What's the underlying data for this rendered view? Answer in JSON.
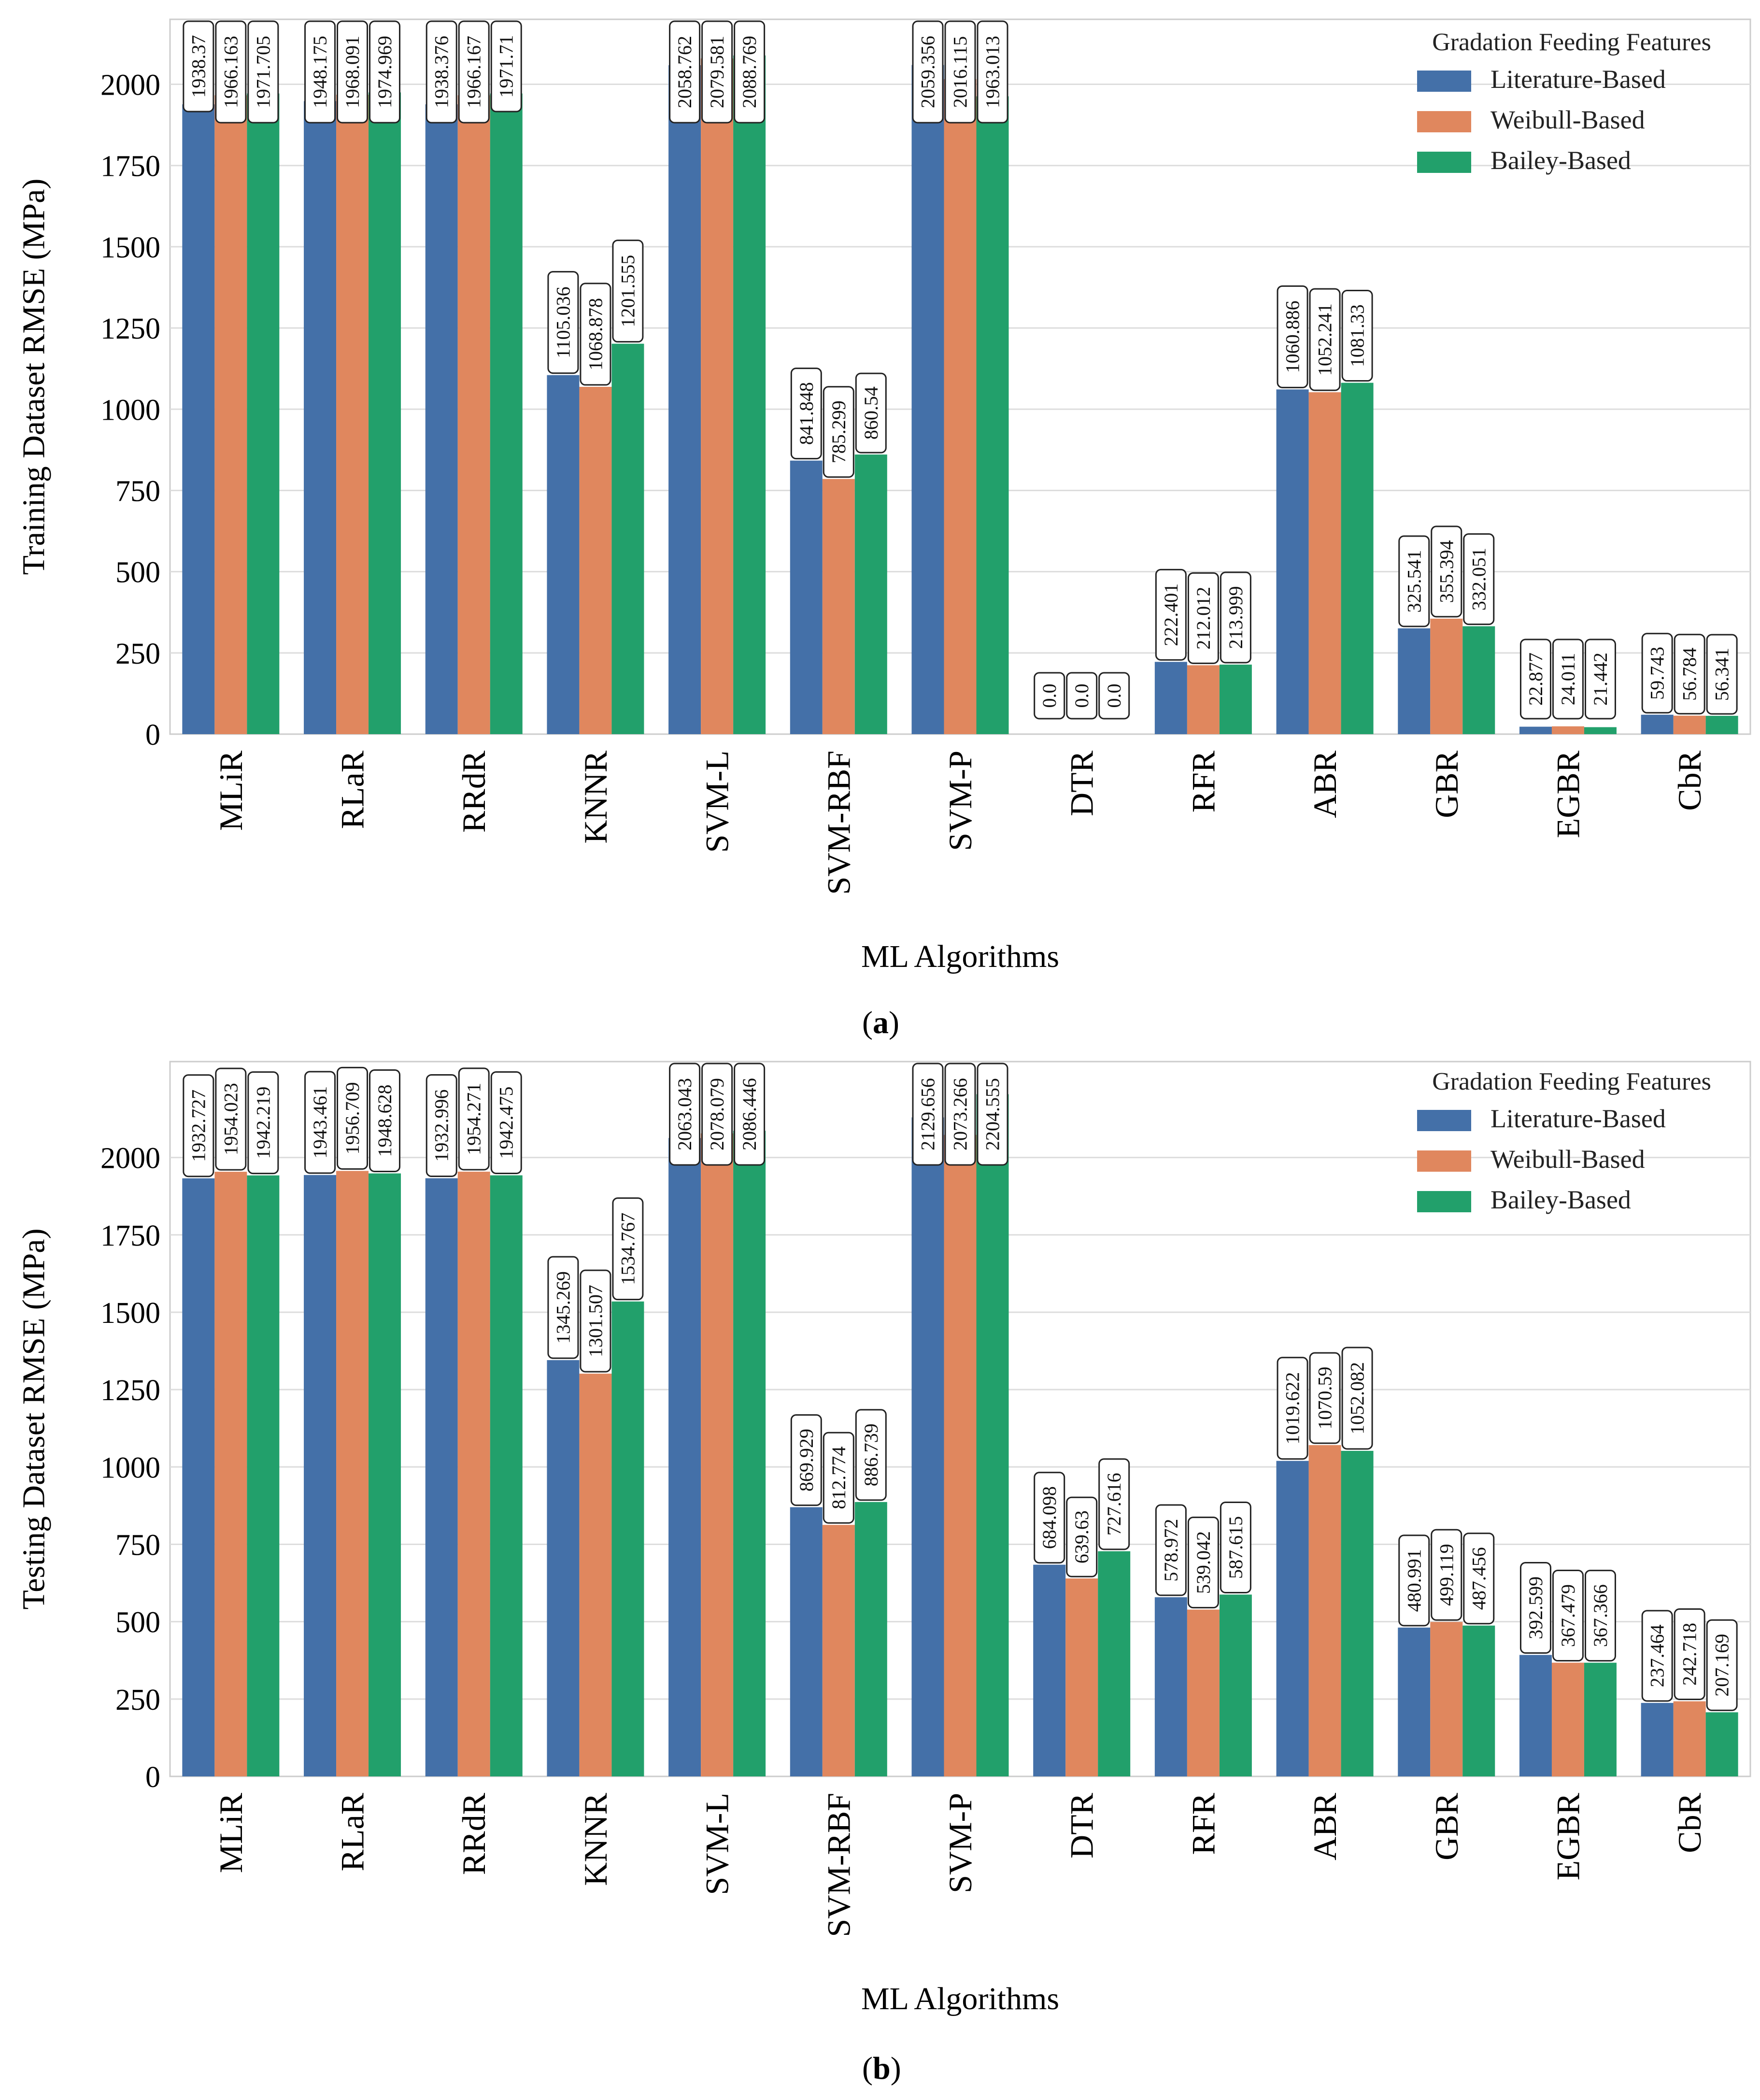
{
  "figure": {
    "caption_a": {
      "open": "(",
      "letter": "a",
      "close": ")"
    },
    "caption_b": {
      "open": "(",
      "letter": "b",
      "close": ")"
    }
  },
  "colors": {
    "literature": "#4470a8",
    "weibull": "#e0875e",
    "bailey": "#22a06b",
    "grid": "#dddddd",
    "frame": "#cccccc"
  },
  "chart_data": [
    {
      "type": "bar",
      "panel": "a",
      "xlabel": "ML Algorithms",
      "ylabel": "Training Dataset RMSE (MPa)",
      "ylim": [
        0,
        2200
      ],
      "yticks": [
        0,
        250,
        500,
        750,
        1000,
        1250,
        1500,
        1750,
        2000
      ],
      "legend": {
        "title": "Gradation Feeding Features",
        "placement": "top-right"
      },
      "categories": [
        "MLiR",
        "RLaR",
        "RRdR",
        "KNNR",
        "SVM-L",
        "SVM-RBF",
        "SVM-P",
        "DTR",
        "RFR",
        "ABR",
        "GBR",
        "EGBR",
        "CbR"
      ],
      "series": [
        {
          "name": "Literature-Based",
          "color": "#4470a8",
          "values": [
            1938.37,
            1948.175,
            1938.376,
            1105.036,
            2058.762,
            841.848,
            2059.356,
            0.0,
            222.401,
            1060.886,
            325.541,
            22.877,
            59.743
          ],
          "labels": [
            "1938.37",
            "1948.175",
            "1938.376",
            "1105.036",
            "2058.762",
            "841.848",
            "2059.356",
            "0.0",
            "222.401",
            "1060.886",
            "325.541",
            "22.877",
            "59.743"
          ]
        },
        {
          "name": "Weibull-Based",
          "color": "#e0875e",
          "values": [
            1966.163,
            1968.091,
            1966.167,
            1068.878,
            2079.581,
            785.299,
            2016.115,
            0.0,
            212.012,
            1052.241,
            355.394,
            24.011,
            56.784
          ],
          "labels": [
            "1966.163",
            "1968.091",
            "1966.167",
            "1068.878",
            "2079.581",
            "785.299",
            "2016.115",
            "0.0",
            "212.012",
            "1052.241",
            "355.394",
            "24.011",
            "56.784"
          ]
        },
        {
          "name": "Bailey-Based",
          "color": "#22a06b",
          "values": [
            1971.705,
            1974.969,
            1971.71,
            1201.555,
            2088.769,
            860.54,
            1963.013,
            0.0,
            213.999,
            1081.33,
            332.051,
            21.442,
            56.341
          ],
          "labels": [
            "1971.705",
            "1974.969",
            "1971.71",
            "1201.555",
            "2088.769",
            "860.54",
            "1963.013",
            "0.0",
            "213.999",
            "1081.33",
            "332.051",
            "21.442",
            "56.341"
          ]
        }
      ]
    },
    {
      "type": "bar",
      "panel": "b",
      "xlabel": "ML Algorithms",
      "ylabel": "Testing Dataset RMSE (MPa)",
      "ylim": [
        0,
        2310
      ],
      "yticks": [
        0,
        250,
        500,
        750,
        1000,
        1250,
        1500,
        1750,
        2000
      ],
      "legend": {
        "title": "Gradation Feeding Features",
        "placement": "top-right"
      },
      "categories": [
        "MLiR",
        "RLaR",
        "RRdR",
        "KNNR",
        "SVM-L",
        "SVM-RBF",
        "SVM-P",
        "DTR",
        "RFR",
        "ABR",
        "GBR",
        "EGBR",
        "CbR"
      ],
      "series": [
        {
          "name": "Literature-Based",
          "color": "#4470a8",
          "values": [
            1932.727,
            1943.461,
            1932.996,
            1345.269,
            2063.043,
            869.929,
            2129.656,
            684.098,
            578.972,
            1019.622,
            480.991,
            392.599,
            237.464
          ],
          "labels": [
            "1932.727",
            "1943.461",
            "1932.996",
            "1345.269",
            "2063.043",
            "869.929",
            "2129.656",
            "684.098",
            "578.972",
            "1019.622",
            "480.991",
            "392.599",
            "237.464"
          ]
        },
        {
          "name": "Weibull-Based",
          "color": "#e0875e",
          "values": [
            1954.023,
            1956.709,
            1954.271,
            1301.507,
            2078.079,
            812.774,
            2073.266,
            639.63,
            539.042,
            1070.59,
            499.119,
            367.479,
            242.718
          ],
          "labels": [
            "1954.023",
            "1956.709",
            "1954.271",
            "1301.507",
            "2078.079",
            "812.774",
            "2073.266",
            "639.63",
            "539.042",
            "1070.59",
            "499.119",
            "367.479",
            "242.718"
          ]
        },
        {
          "name": "Bailey-Based",
          "color": "#22a06b",
          "values": [
            1942.219,
            1948.628,
            1942.475,
            1534.767,
            2086.446,
            886.739,
            2204.555,
            727.616,
            587.615,
            1052.082,
            487.456,
            367.366,
            207.169
          ],
          "labels": [
            "1942.219",
            "1948.628",
            "1942.475",
            "1534.767",
            "2086.446",
            "886.739",
            "2204.555",
            "727.616",
            "587.615",
            "1052.082",
            "487.456",
            "367.366",
            "207.169"
          ]
        }
      ]
    }
  ]
}
